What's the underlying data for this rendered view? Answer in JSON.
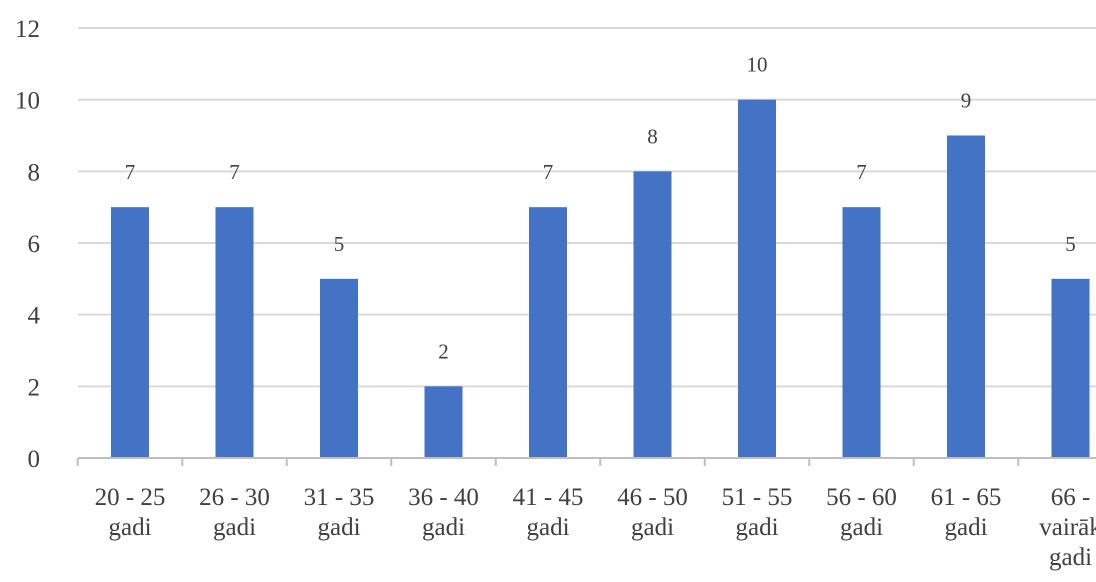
{
  "chart_data": {
    "type": "bar",
    "title": "",
    "xlabel": "",
    "ylabel": "",
    "categories": [
      [
        "20 - 25",
        "gadi"
      ],
      [
        "26 - 30",
        "gadi"
      ],
      [
        "31 - 35",
        "gadi"
      ],
      [
        "36 - 40",
        "gadi"
      ],
      [
        "41 - 45",
        "gadi"
      ],
      [
        "46 - 50",
        "gadi"
      ],
      [
        "51 - 55",
        "gadi"
      ],
      [
        "56 - 60",
        "gadi"
      ],
      [
        "61 - 65",
        "gadi"
      ],
      [
        "66 -",
        "vairāk",
        "gadi"
      ]
    ],
    "values": [
      7,
      7,
      5,
      2,
      7,
      8,
      10,
      7,
      9,
      5
    ],
    "ylim": [
      0,
      12
    ],
    "yticks": [
      0,
      2,
      4,
      6,
      8,
      10,
      12
    ],
    "grid": true,
    "legend": "none",
    "bar_color": "#4472c4"
  }
}
